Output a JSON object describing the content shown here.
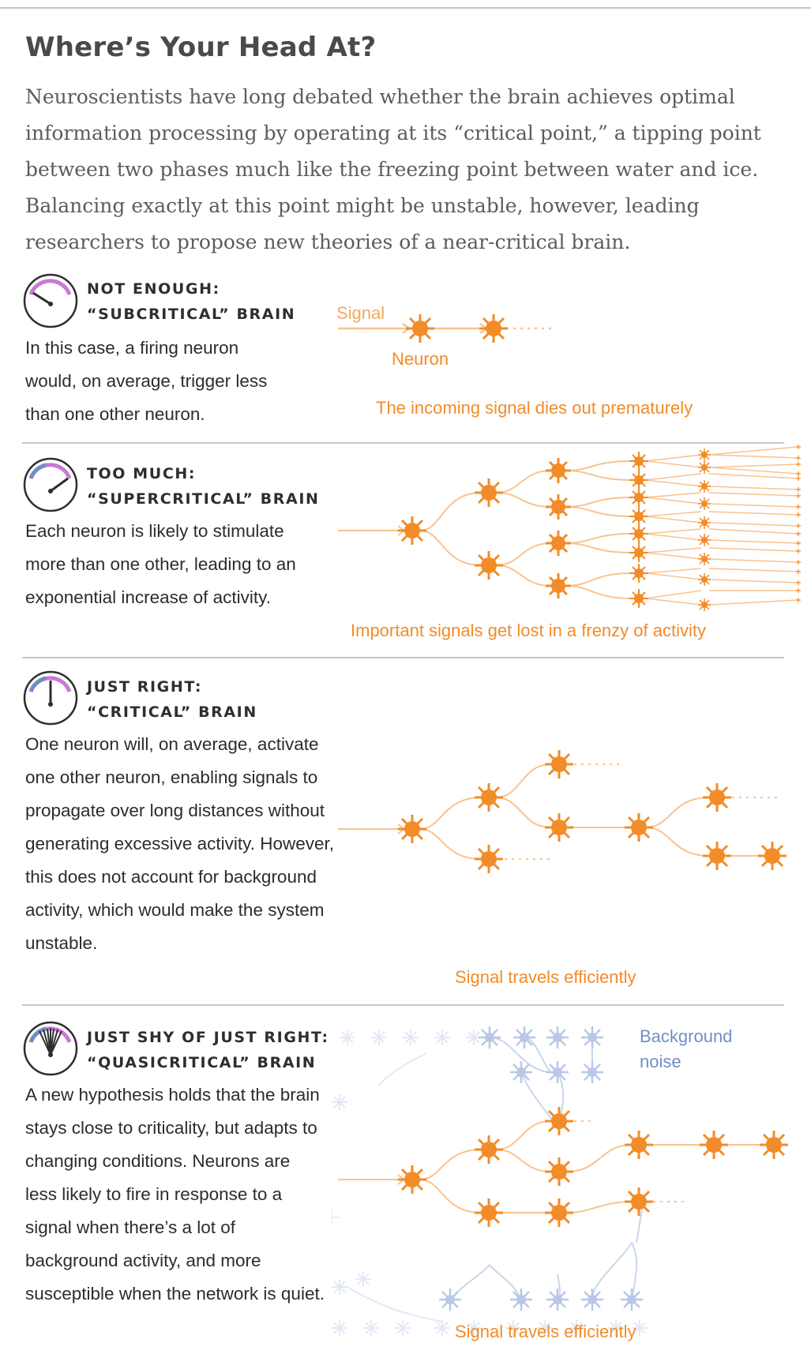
{
  "title": "Where’s Your Head At?",
  "intro": "Neuroscientists have long debated whether the brain achieves optimal information processing by operating at its “critical point,” a tipping point between two phases much like the freezing point between water and ice. Balancing exactly at this point might be unstable, however, leading researchers to propose new theories of a near-critical brain.",
  "colors": {
    "neuron": "#f28c28",
    "link": "#f9c38f",
    "caption": "#f28c28",
    "noise": "#6f8fc4",
    "noise_neuron": "#b9c8e6"
  },
  "panels": [
    {
      "heading1": "NOT ENOUGH:",
      "heading2": "“SUBCRITICAL” BRAIN",
      "icon": "gauge-low-icon",
      "description": "In this case, a firing neuron would, on average, trigger less than one other neuron.",
      "signal_label": "Signal",
      "neuron_label": "Neuron",
      "caption": "The incoming signal dies out prematurely"
    },
    {
      "heading1": "TOO MUCH:",
      "heading2": "“SUPERCRITICAL” BRAIN",
      "icon": "gauge-high-icon",
      "description": "Each neuron is likely to stimulate more than one other, leading to an exponential increase of activity.",
      "caption": "Important signals get lost in a frenzy of activity"
    },
    {
      "heading1": "JUST RIGHT:",
      "heading2": "“CRITICAL” BRAIN",
      "icon": "gauge-center-icon",
      "description": "One neuron will, on average, activate one other neuron, enabling signals to propagate over long distances without generating excessive activity. However, this does not account for background activity, which would make the system unstable.",
      "caption": "Signal travels efficiently"
    },
    {
      "heading1": "JUST SHY OF JUST RIGHT:",
      "heading2": "“QUASICRITICAL” BRAIN",
      "icon": "gauge-fluctuating-icon",
      "description": "A new hypothesis holds that the brain stays close to criticality, but adapts to changing conditions. Neurons are less likely to fire in response to a signal when there’s a lot of background activity, and more susceptible when the network is quiet.",
      "noise_label_1": "Background",
      "noise_label_2": "noise",
      "caption": "Signal travels efficiently"
    }
  ]
}
